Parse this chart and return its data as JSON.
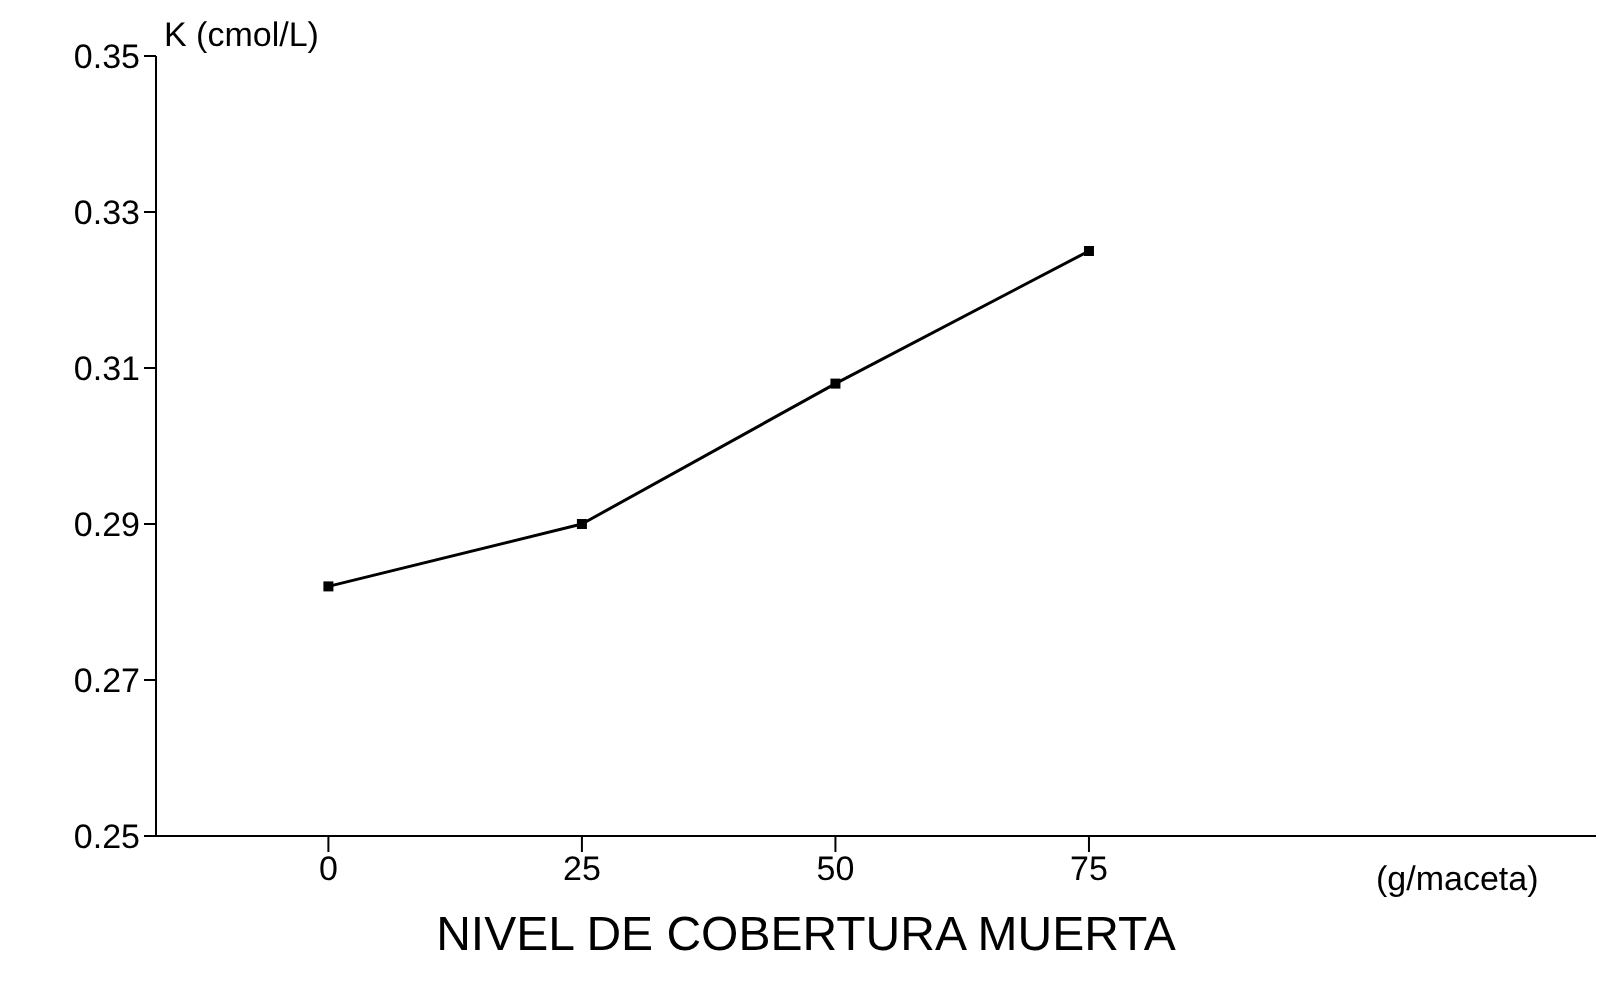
{
  "chart_data": {
    "type": "line",
    "xlabel": "NIVEL DE COBERTURA MUERTA",
    "ylabel": "K (cmol/L)",
    "x": [
      0,
      25,
      50,
      75
    ],
    "series": [
      {
        "color": "#000000",
        "values": [
          0.282,
          0.29,
          0.308,
          0.325
        ]
      }
    ],
    "xlim": [
      -17,
      125
    ],
    "xticks": [
      0,
      25,
      50,
      75
    ],
    "ylim": [
      0.25,
      0.35
    ],
    "yticks": [
      0.25,
      0.27,
      0.29,
      0.31,
      0.33,
      0.35
    ],
    "annotations": [
      "(g/maceta)"
    ],
    "grid": false,
    "legend": false,
    "marker": "square",
    "line_style": "solid"
  }
}
